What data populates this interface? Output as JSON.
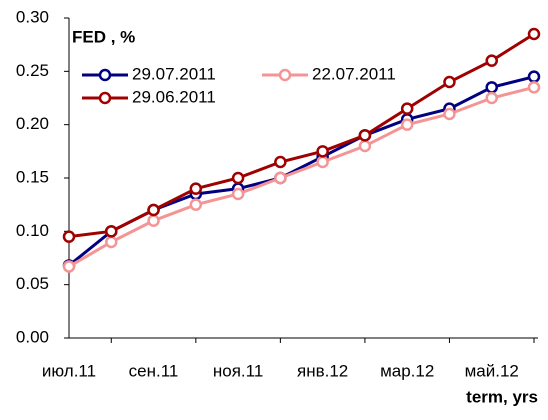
{
  "chart_data": {
    "type": "line",
    "title": "FED , %",
    "x_label": "term, yrs",
    "categories": [
      "июл.11",
      null,
      "сен.11",
      null,
      "ноя.11",
      null,
      "янв.12",
      null,
      "мар.12",
      null,
      "май.12",
      null
    ],
    "series": [
      {
        "name": "29.07.2011",
        "color": "#000080",
        "values": [
          0.068,
          0.1,
          0.12,
          0.135,
          0.14,
          0.15,
          0.17,
          0.19,
          0.205,
          0.215,
          0.235,
          0.245
        ]
      },
      {
        "name": "22.07.2011",
        "color": "#f49494",
        "values": [
          0.067,
          0.09,
          0.11,
          0.125,
          0.135,
          0.15,
          0.165,
          0.18,
          0.2,
          0.21,
          0.225,
          0.235
        ]
      },
      {
        "name": "29.06.2011",
        "color": "#a00000",
        "values": [
          0.095,
          0.1,
          0.12,
          0.14,
          0.15,
          0.165,
          0.175,
          0.19,
          0.215,
          0.24,
          0.26,
          0.285
        ]
      }
    ],
    "ylim": [
      0,
      0.3
    ],
    "yticks": [
      {
        "value": 0,
        "label": "0.00"
      },
      {
        "value": 0.05,
        "label": "0.05"
      },
      {
        "value": 0.1,
        "label": "0.10"
      },
      {
        "value": 0.15,
        "label": "0.15"
      },
      {
        "value": 0.2,
        "label": "0.20"
      },
      {
        "value": 0.25,
        "label": "0.25"
      },
      {
        "value": 0.3,
        "label": "0.30"
      }
    ],
    "grid": false,
    "legend": "upper left"
  }
}
